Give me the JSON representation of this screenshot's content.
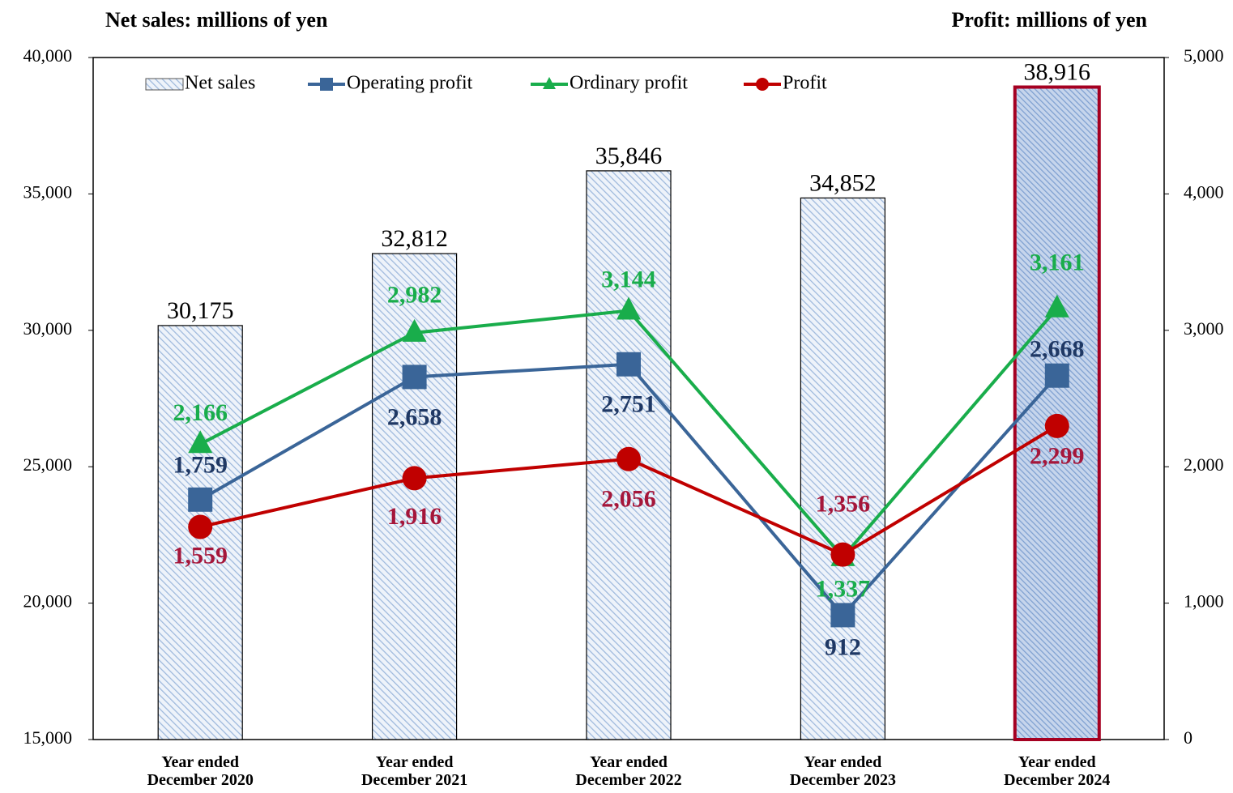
{
  "chart_data": {
    "type": "bar_line",
    "y_title": "Net sales: millions of yen",
    "y2_title": "Profit: millions of yen",
    "categories": [
      "Year ended December 2020",
      "Year ended December 2021",
      "Year ended December 2022",
      "Year ended December 2023",
      "Year ended December 2024"
    ],
    "ylim": [
      15000,
      40000
    ],
    "yticks": [
      {
        "value": 15000,
        "label": "15,000"
      },
      {
        "value": 20000,
        "label": "20,000"
      },
      {
        "value": 25000,
        "label": "25,000"
      },
      {
        "value": 30000,
        "label": "30,000"
      },
      {
        "value": 35000,
        "label": "35,000"
      },
      {
        "value": 40000,
        "label": "40,000"
      }
    ],
    "y2lim": [
      0,
      5000
    ],
    "y2ticks": [
      0,
      {
        "value": 1000,
        "label": "1,000"
      },
      {
        "value": 2000,
        "label": "2,000"
      },
      {
        "value": 3000,
        "label": "3,000"
      },
      {
        "value": 4000,
        "label": "4,000"
      },
      {
        "value": 5000,
        "label": "5,000"
      }
    ],
    "series": [
      {
        "name": "Net sales",
        "type": "bar",
        "color": "#9db8dc",
        "values": [
          30175,
          32812,
          35846,
          34852,
          38916
        ],
        "value_labels": [
          "30,175",
          "32,812",
          "35,846",
          "34,852",
          "38,916"
        ]
      },
      {
        "name": "Operating profit",
        "type": "line",
        "axis": "y2",
        "marker": "square",
        "color": "#3a6598",
        "label_color": "#1f3864",
        "values": [
          1759,
          2658,
          2751,
          912,
          2668
        ],
        "value_labels": [
          "1,759",
          "2,658",
          "2,751",
          "912",
          "2,668"
        ]
      },
      {
        "name": "Ordinary profit",
        "type": "line",
        "axis": "y2",
        "marker": "triangle",
        "color": "#19ad4b",
        "label_color": "#19ad4b",
        "values": [
          2166,
          2982,
          3144,
          1337,
          3161
        ],
        "value_labels": [
          "2,166",
          "2,982",
          "3,144",
          "1,337",
          "3,161"
        ]
      },
      {
        "name": "Profit",
        "type": "line",
        "axis": "y2",
        "marker": "circle",
        "color": "#c00000",
        "label_color": "#a5163a",
        "values": [
          1559,
          1916,
          2056,
          1356,
          2299
        ],
        "value_labels": [
          "1,559",
          "1,916",
          "2,056",
          "1,356",
          "2,299"
        ]
      }
    ]
  }
}
